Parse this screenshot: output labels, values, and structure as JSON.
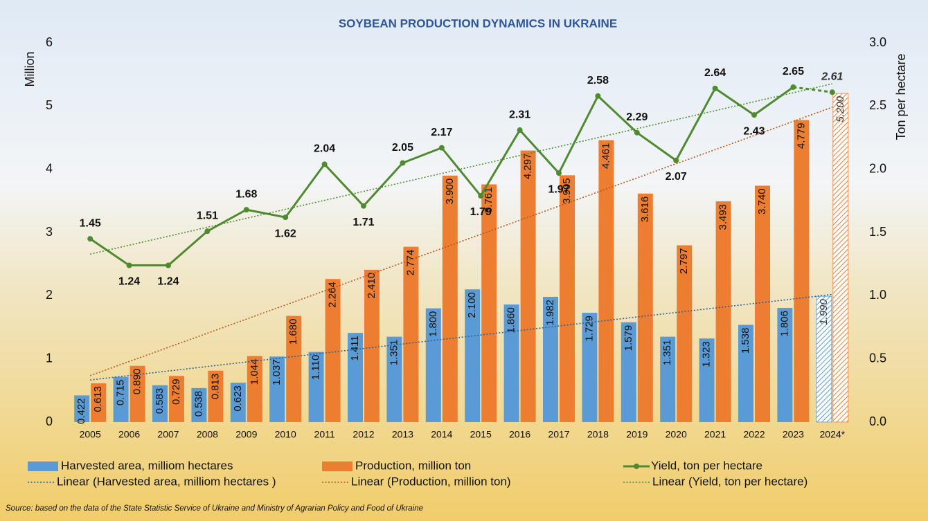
{
  "chart_data": {
    "type": "bar",
    "title": "SOYBEAN PRODUCTION DYNAMICS IN UKRAINE",
    "y_label": "Million",
    "y2_label": "Ton per hectare",
    "source": "Source: based on the data of the State Statistic Service of Ukraine and Ministry of Agrarian Policy and Food of Ukraine",
    "categories": [
      "2005",
      "2006",
      "2007",
      "2008",
      "2009",
      "2010",
      "2011",
      "2012",
      "2013",
      "2014",
      "2015",
      "2016",
      "2017",
      "2018",
      "2019",
      "2020",
      "2021",
      "2022",
      "2023",
      "2024*"
    ],
    "estimate": [
      false,
      false,
      false,
      false,
      false,
      false,
      false,
      false,
      false,
      false,
      false,
      false,
      false,
      false,
      false,
      false,
      false,
      false,
      false,
      true
    ],
    "ylim": [
      0,
      6
    ],
    "yticks": [
      0,
      1,
      2,
      3,
      4,
      5,
      6
    ],
    "y2lim": [
      0,
      3
    ],
    "y2ticks": [
      {
        "value": 0,
        "label": "0.0"
      },
      {
        "value": 0.5,
        "label": "0.5"
      },
      {
        "value": 1,
        "label": "1.0"
      },
      {
        "value": 1.5,
        "label": "1.5"
      },
      {
        "value": 2,
        "label": "2.0"
      },
      {
        "value": 2.5,
        "label": "2.5"
      },
      {
        "value": 3,
        "label": "3.0"
      }
    ],
    "grid": false,
    "legend": "bottom",
    "series": [
      {
        "name": "Harvested area, milliom hectares",
        "type": "bar",
        "color": "#5b9bd5",
        "trendline": "Linear (Harvested area, milliom hectares )",
        "trend_color": "#2e5f9a",
        "values": [
          0.422,
          0.715,
          0.583,
          0.538,
          0.623,
          1.037,
          1.11,
          1.411,
          1.351,
          1.8,
          2.1,
          1.86,
          1.982,
          1.729,
          1.579,
          1.351,
          1.323,
          1.538,
          1.806,
          1.99
        ],
        "value_labels": [
          "0.422",
          "0.715",
          "0.583",
          "0.538",
          "0.623",
          "1.037",
          "1.110",
          "1.411",
          "1.351",
          "1.800",
          "2.100",
          "1.860",
          "1.982",
          "1.729",
          "1.579",
          "1.351",
          "1.323",
          "1.538",
          "1.806",
          "1.990"
        ]
      },
      {
        "name": "Production, million ton",
        "type": "bar",
        "color": "#ed7d31",
        "trendline": "Linear (Production, million ton)",
        "trend_color": "#b5541a",
        "values": [
          0.613,
          0.89,
          0.729,
          0.813,
          1.044,
          1.68,
          2.264,
          2.41,
          2.774,
          3.9,
          3.761,
          4.297,
          3.905,
          4.461,
          3.616,
          2.797,
          3.493,
          3.74,
          4.779,
          5.2
        ],
        "value_labels": [
          "0.613",
          "0.890",
          "0.729",
          "0.813",
          "1.044",
          "1.680",
          "2.264",
          "2.410",
          "2.774",
          "3.900",
          "3.761",
          "4.297",
          "3.905",
          "4.461",
          "3.616",
          "2.797",
          "3.493",
          "3.740",
          "4.779",
          "5.200"
        ]
      },
      {
        "name": "Yield, ton per hectare",
        "type": "line",
        "axis": "y2",
        "color": "#4f8a2f",
        "trendline": "Linear (Yield, ton per hectare)",
        "trend_color": "#4f8a2f",
        "values": [
          1.45,
          1.24,
          1.24,
          1.51,
          1.68,
          1.62,
          2.04,
          1.71,
          2.05,
          2.17,
          1.79,
          2.31,
          1.97,
          2.58,
          2.29,
          2.07,
          2.64,
          2.43,
          2.65,
          2.61
        ]
      }
    ]
  }
}
